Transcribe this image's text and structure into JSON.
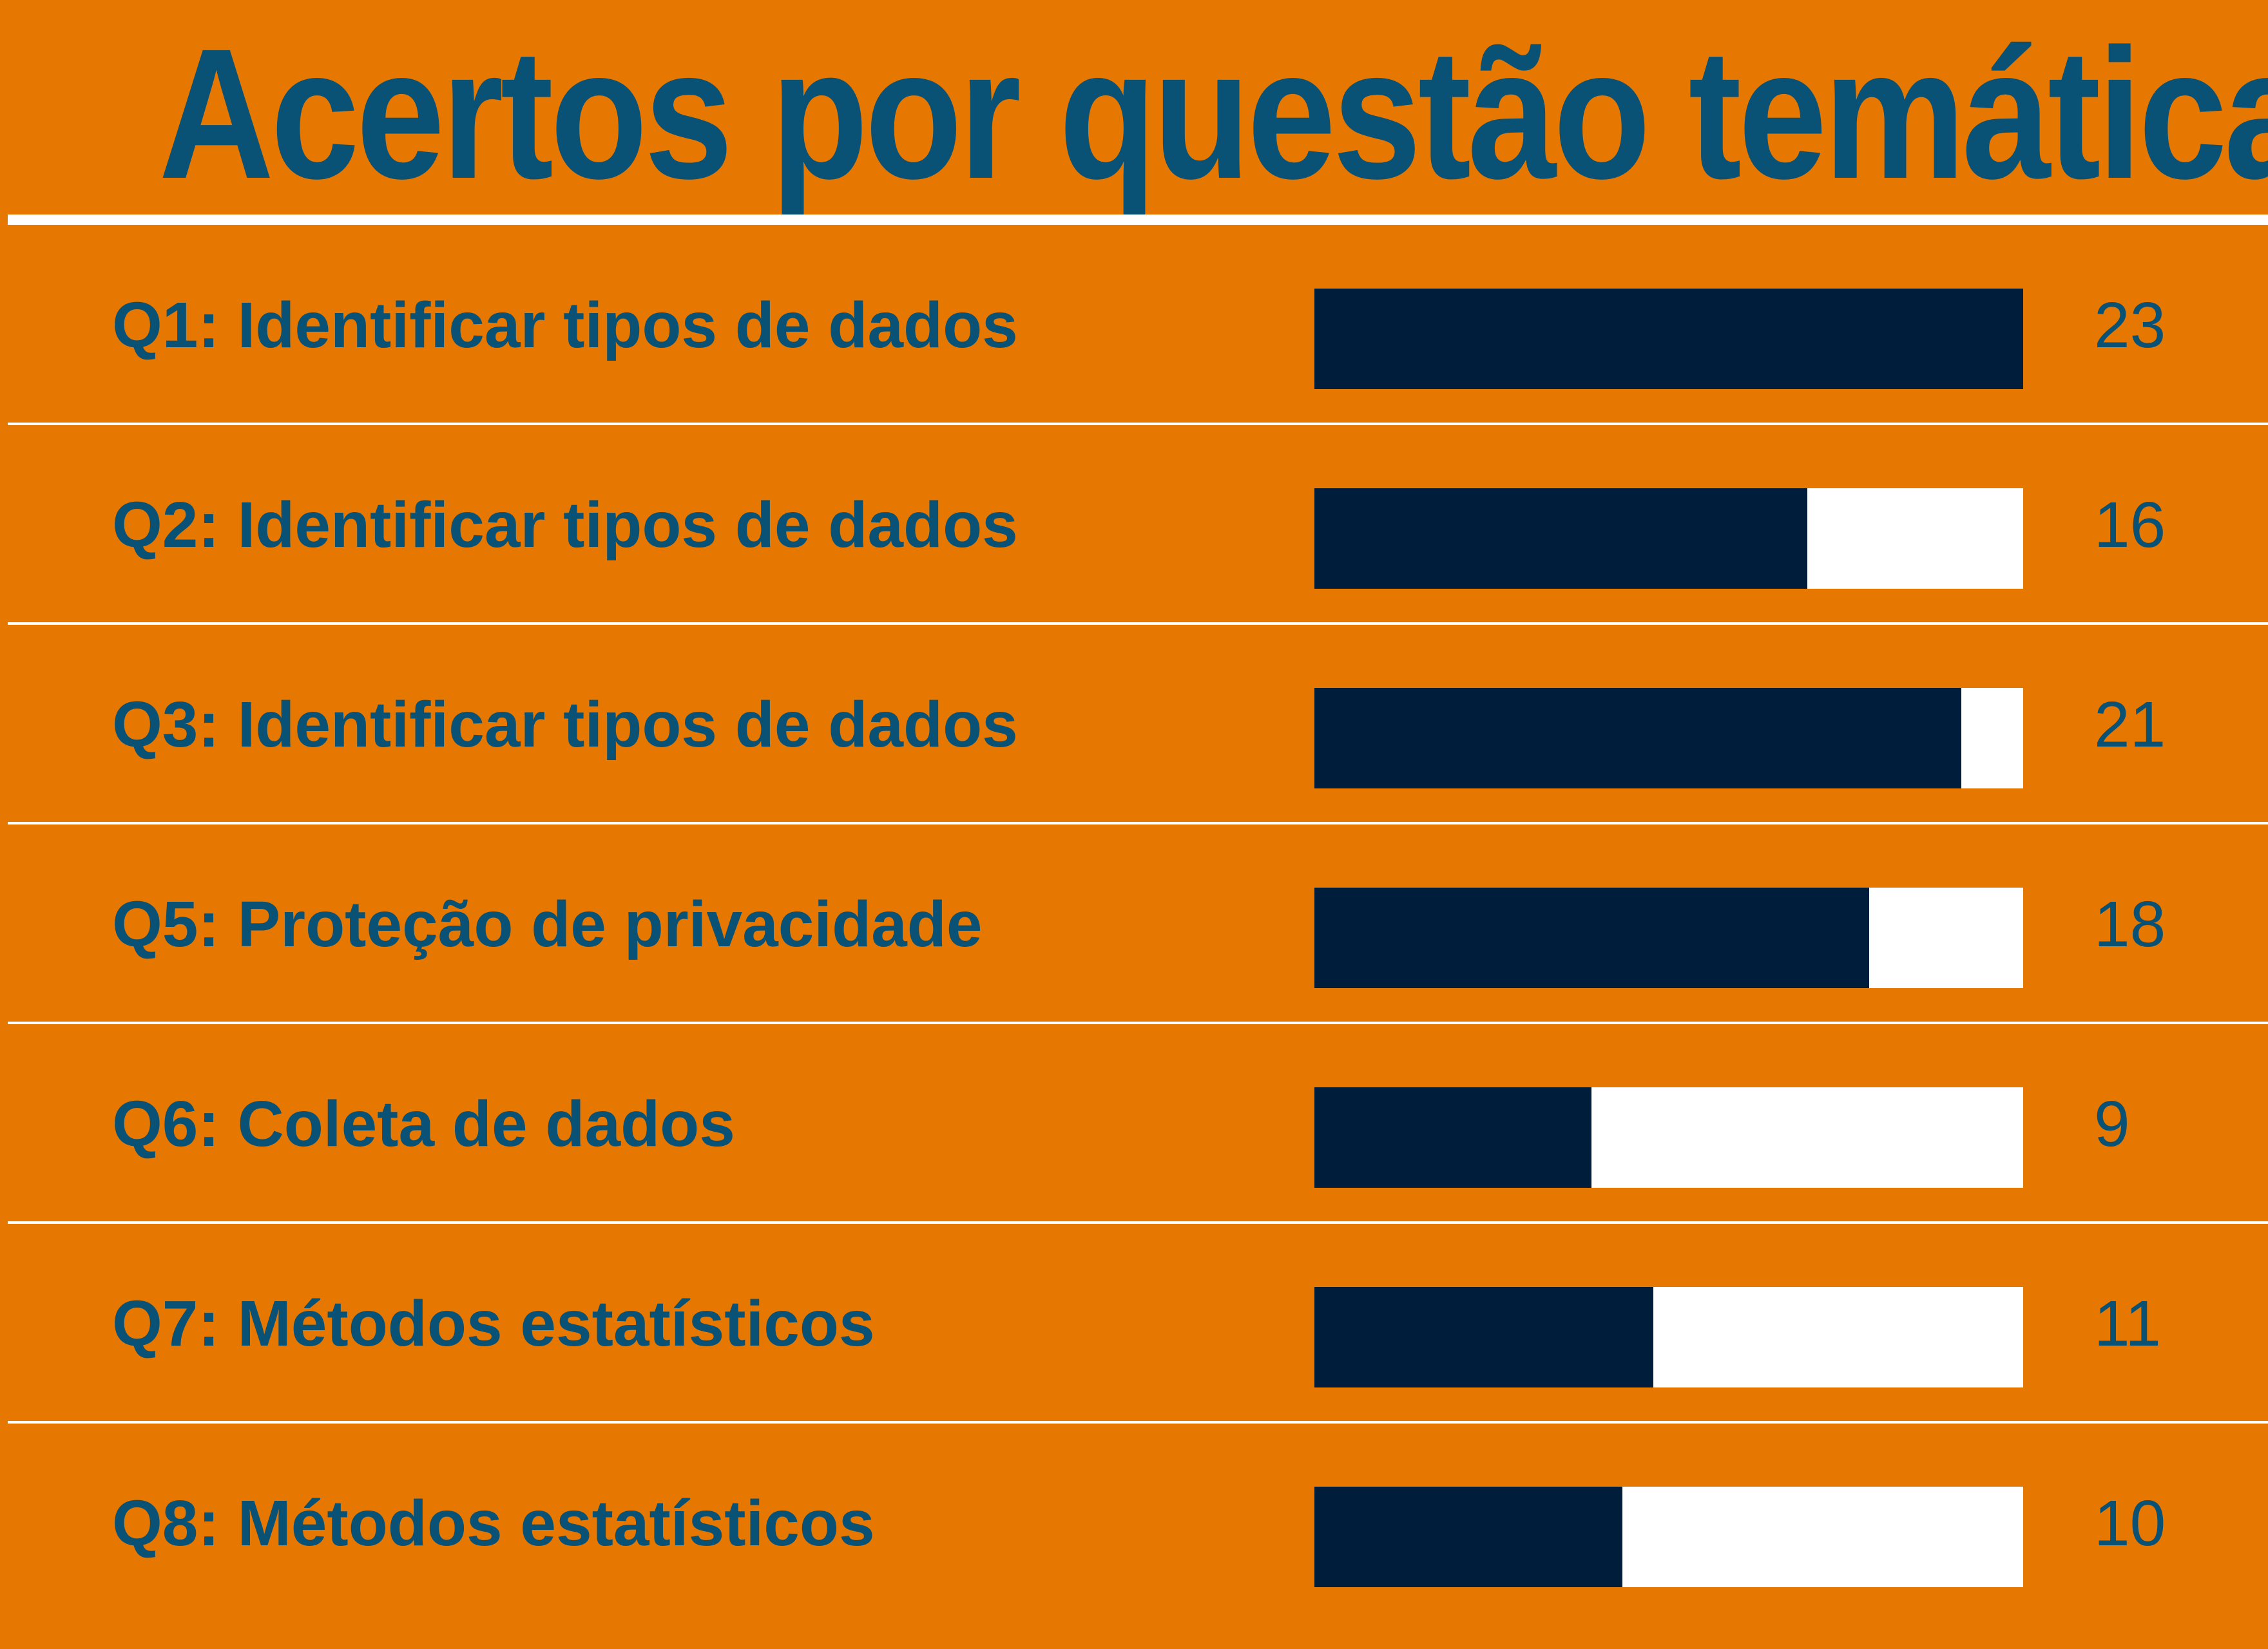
{
  "chart_data": {
    "type": "bar",
    "orientation": "horizontal",
    "title": "Acertos por questão temática",
    "categories": [
      "Q1: Identificar tipos de dados",
      "Q2: Identificar tipos de dados",
      "Q3: Identificar tipos de dados",
      "Q5: Proteção de privacidade",
      "Q6: Coleta de dados",
      "Q7: Métodos estatísticos",
      "Q8: Métodos estatísticos"
    ],
    "values": [
      23,
      16,
      21,
      18,
      9,
      11,
      10
    ],
    "xlim": [
      0,
      23
    ],
    "grid": false,
    "legend": "none"
  },
  "colors": {
    "background": "#e67700",
    "title_text": "#0a5275",
    "label_text": "#0a5275",
    "bar_fill": "#001d3c",
    "bar_track": "#ffffff",
    "divider": "#ffffff",
    "value_text": "#0a5275"
  }
}
